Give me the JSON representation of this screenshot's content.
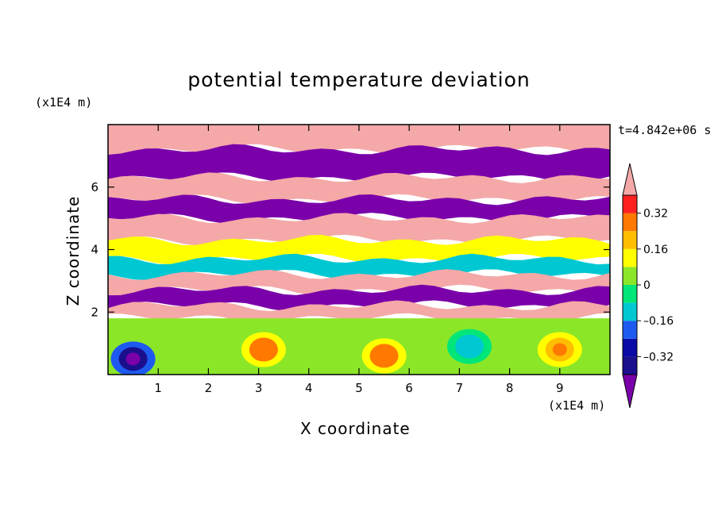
{
  "chart_data": {
    "type": "heatmap",
    "title": "potential temperature deviation",
    "xlabel": "X coordinate",
    "ylabel": "Z coordinate",
    "x_scale_label": "(x1E4 m)",
    "y_scale_label": "(x1E4 m)",
    "time_label": "t=4.842e+06 s",
    "xlim": [
      0,
      10
    ],
    "ylim": [
      0,
      8
    ],
    "x_ticks": [
      1,
      2,
      3,
      4,
      5,
      6,
      7,
      8,
      9
    ],
    "y_ticks": [
      2,
      4,
      6
    ],
    "x_tick_labels": [
      "1",
      "2",
      "3",
      "4",
      "5",
      "6",
      "7",
      "8",
      "9"
    ],
    "y_tick_labels": [
      "2",
      "4",
      "6"
    ],
    "colorbar": {
      "levels": [
        -0.4,
        -0.32,
        -0.24,
        -0.16,
        -0.08,
        0,
        0.08,
        0.16,
        0.24,
        0.32,
        0.4
      ],
      "colors": [
        "#1a0f8c",
        "#0a0aa6",
        "#1e5af0",
        "#00c8d2",
        "#00e678",
        "#8ce628",
        "#ffff00",
        "#ffbe00",
        "#ff7800",
        "#ff2020"
      ],
      "under_color": "#7a00aa",
      "over_color": "#f4a8a8",
      "tick_values": [
        "0.32",
        "0.16",
        "0",
        "-0.16",
        "-0.32"
      ],
      "tick_labels": [
        "0.32",
        "0.16",
        "0",
        "–0.16",
        "–0.32"
      ]
    },
    "field_bands": [
      {
        "z": [
          7.2,
          8.0
        ],
        "value": 0.5
      },
      {
        "z": [
          6.3,
          7.2
        ],
        "value": -0.5
      },
      {
        "z": [
          5.6,
          6.3
        ],
        "value": 0.5
      },
      {
        "z": [
          5.0,
          5.6
        ],
        "value": -0.5
      },
      {
        "z": [
          4.3,
          5.0
        ],
        "value": 0.5
      },
      {
        "z": [
          3.7,
          4.3
        ],
        "value": 0.1
      },
      {
        "z": [
          3.2,
          3.7
        ],
        "value": -0.1
      },
      {
        "z": [
          2.7,
          3.2
        ],
        "value": 0.5
      },
      {
        "z": [
          2.2,
          2.7
        ],
        "value": -0.5
      },
      {
        "z": [
          1.8,
          2.2
        ],
        "value": 0.5
      },
      {
        "z": [
          0.0,
          1.8
        ],
        "value": 0.05
      }
    ],
    "low_level_features": [
      {
        "x": 0.5,
        "z": 0.5,
        "value": -0.45
      },
      {
        "x": 3.1,
        "z": 0.8,
        "value": 0.3
      },
      {
        "x": 5.5,
        "z": 0.6,
        "value": 0.3
      },
      {
        "x": 9.0,
        "z": 0.8,
        "value": 0.25
      },
      {
        "x": 7.2,
        "z": 0.9,
        "value": -0.15
      }
    ]
  }
}
